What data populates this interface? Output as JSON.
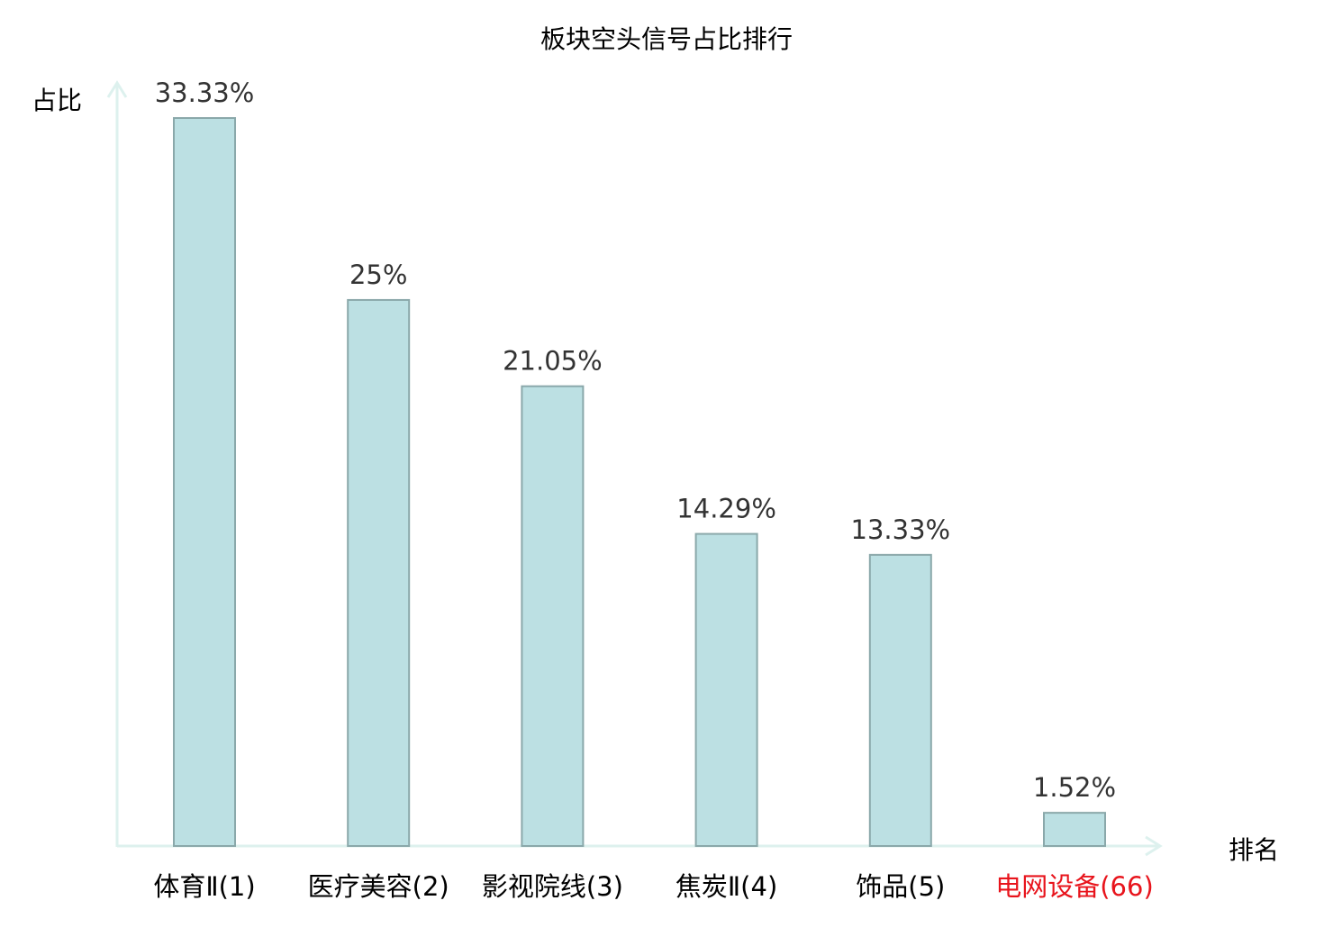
{
  "chart_data": {
    "type": "bar",
    "title": "板块空头信号占比排行",
    "xlabel": "排名",
    "ylabel": "占比",
    "categories": [
      "体育Ⅱ(1)",
      "医疗美容(2)",
      "影视院线(3)",
      "焦炭Ⅱ(4)",
      "饰品(5)",
      "电网设备(66)"
    ],
    "values": [
      33.33,
      25,
      21.05,
      14.29,
      13.33,
      1.52
    ],
    "value_labels": [
      "33.33%",
      "25%",
      "21.05%",
      "14.29%",
      "13.33%",
      "1.52%"
    ],
    "highlight_index": 5,
    "ylim": [
      0,
      35
    ],
    "grid": false,
    "colors": {
      "bar_fill": "#bce0e3",
      "bar_stroke": "#8aa8aa",
      "axis": "#ddf1ee",
      "label": "#000000",
      "highlight": "#e8141c",
      "value_text": "#333333"
    }
  }
}
